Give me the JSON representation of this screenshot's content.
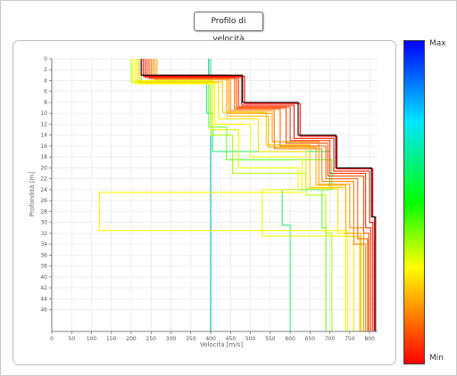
{
  "title": "Profilo di velocità",
  "colorbar": {
    "max_label": "Max",
    "min_label": "Min"
  },
  "chart_data": {
    "type": "line",
    "title": "Profilo di velocità",
    "xlabel": "Velocità [m/s]",
    "ylabel": "Profondità [m]",
    "xlim": [
      0,
      820
    ],
    "ylim": [
      0,
      50
    ],
    "y_inverted": true,
    "grid": true,
    "x_ticks": [
      0,
      50,
      100,
      150,
      200,
      250,
      300,
      350,
      400,
      450,
      500,
      550,
      600,
      650,
      700,
      750,
      800
    ],
    "y_ticks": [
      0,
      2,
      4,
      6,
      8,
      10,
      12,
      14,
      16,
      18,
      20,
      22,
      24,
      26,
      28,
      30,
      32,
      34,
      36,
      38,
      40,
      42,
      44,
      46
    ],
    "colormap": [
      "#0000ff",
      "#00e6ff",
      "#00ff00",
      "#ffff00",
      "#ff8000",
      "#ff0000"
    ],
    "series": [
      {
        "color": "#000000",
        "layers": [
          {
            "depth": 3,
            "v": 225
          },
          {
            "depth": 8,
            "v": 480
          },
          {
            "depth": 14,
            "v": 620
          },
          {
            "depth": 20,
            "v": 715
          },
          {
            "depth": 29,
            "v": 805
          },
          {
            "depth": 50,
            "v": 815
          }
        ]
      },
      {
        "color": "#ff0000",
        "layers": [
          {
            "depth": 3.2,
            "v": 230
          },
          {
            "depth": 8.2,
            "v": 485
          },
          {
            "depth": 14.2,
            "v": 625
          },
          {
            "depth": 20.2,
            "v": 718
          },
          {
            "depth": 29,
            "v": 808
          },
          {
            "depth": 50,
            "v": 812
          }
        ]
      },
      {
        "color": "#ff1a00",
        "layers": [
          {
            "depth": 3.4,
            "v": 235
          },
          {
            "depth": 8.5,
            "v": 478
          },
          {
            "depth": 14.6,
            "v": 610
          },
          {
            "depth": 20.6,
            "v": 710
          },
          {
            "depth": 30,
            "v": 800
          },
          {
            "depth": 50,
            "v": 808
          }
        ]
      },
      {
        "color": "#ff3300",
        "layers": [
          {
            "depth": 3.1,
            "v": 240
          },
          {
            "depth": 8.8,
            "v": 470
          },
          {
            "depth": 15,
            "v": 600
          },
          {
            "depth": 21,
            "v": 700
          },
          {
            "depth": 31,
            "v": 790
          },
          {
            "depth": 50,
            "v": 803
          }
        ]
      },
      {
        "color": "#ff4d00",
        "layers": [
          {
            "depth": 3.6,
            "v": 245
          },
          {
            "depth": 9,
            "v": 465
          },
          {
            "depth": 15.5,
            "v": 590
          },
          {
            "depth": 21.5,
            "v": 695
          },
          {
            "depth": 32,
            "v": 785
          },
          {
            "depth": 50,
            "v": 798
          }
        ]
      },
      {
        "color": "#ff6600",
        "layers": [
          {
            "depth": 3.3,
            "v": 250
          },
          {
            "depth": 9.2,
            "v": 460
          },
          {
            "depth": 16,
            "v": 575
          },
          {
            "depth": 22,
            "v": 690
          },
          {
            "depth": 33,
            "v": 770
          },
          {
            "depth": 50,
            "v": 795
          }
        ]
      },
      {
        "color": "#ff8000",
        "layers": [
          {
            "depth": 3.5,
            "v": 255
          },
          {
            "depth": 9.5,
            "v": 450
          },
          {
            "depth": 16.5,
            "v": 560
          },
          {
            "depth": 22.5,
            "v": 680
          },
          {
            "depth": 34,
            "v": 760
          },
          {
            "depth": 50,
            "v": 790
          }
        ]
      },
      {
        "color": "#ff9900",
        "layers": [
          {
            "depth": 3.8,
            "v": 260
          },
          {
            "depth": 10,
            "v": 445
          },
          {
            "depth": 15.2,
            "v": 555
          },
          {
            "depth": 23,
            "v": 672
          },
          {
            "depth": 31,
            "v": 750
          },
          {
            "depth": 50,
            "v": 785
          }
        ]
      },
      {
        "color": "#ffb300",
        "layers": [
          {
            "depth": 3,
            "v": 265
          },
          {
            "depth": 10.5,
            "v": 440
          },
          {
            "depth": 16.2,
            "v": 545
          },
          {
            "depth": 23.2,
            "v": 665
          },
          {
            "depth": 32,
            "v": 740
          },
          {
            "depth": 50,
            "v": 778
          }
        ]
      },
      {
        "color": "#ffcc00",
        "layers": [
          {
            "depth": 4.2,
            "v": 220
          },
          {
            "depth": 9.8,
            "v": 430
          },
          {
            "depth": 15.8,
            "v": 540
          },
          {
            "depth": 23.6,
            "v": 650
          },
          {
            "depth": 32.6,
            "v": 740
          },
          {
            "depth": 50,
            "v": 775
          }
        ]
      },
      {
        "color": "#ffe600",
        "layers": [
          {
            "depth": 4.4,
            "v": 215
          },
          {
            "depth": 11,
            "v": 420
          },
          {
            "depth": 17,
            "v": 520
          },
          {
            "depth": 23.8,
            "v": 640
          },
          {
            "depth": 32,
            "v": 720
          },
          {
            "depth": 50,
            "v": 760
          }
        ]
      },
      {
        "color": "#ffff00",
        "layers": [
          {
            "depth": 4.6,
            "v": 210
          },
          {
            "depth": 12,
            "v": 410
          },
          {
            "depth": 18,
            "v": 500
          },
          {
            "depth": 24.5,
            "v": 630
          },
          {
            "depth": 31.5,
            "v": 120
          },
          {
            "depth": 50,
            "v": 745
          }
        ]
      },
      {
        "color": "#e6ff00",
        "layers": [
          {
            "depth": 4,
            "v": 205
          },
          {
            "depth": 13,
            "v": 405
          },
          {
            "depth": 20,
            "v": 470
          },
          {
            "depth": 24,
            "v": 620
          },
          {
            "depth": 32.5,
            "v": 530
          },
          {
            "depth": 50,
            "v": 740
          }
        ]
      },
      {
        "color": "#b3ff00",
        "layers": [
          {
            "depth": 4.3,
            "v": 200
          },
          {
            "depth": 14,
            "v": 400
          },
          {
            "depth": 21,
            "v": 455
          },
          {
            "depth": 25,
            "v": 640
          },
          {
            "depth": 32,
            "v": 690
          },
          {
            "depth": 50,
            "v": 705
          }
        ]
      },
      {
        "color": "#66ff33",
        "layers": [
          {
            "depth": 4.5,
            "v": 225
          },
          {
            "depth": 12.5,
            "v": 395
          },
          {
            "depth": 18.5,
            "v": 440
          },
          {
            "depth": 24,
            "v": 705
          },
          {
            "depth": 31,
            "v": 680
          },
          {
            "depth": 50,
            "v": 690
          }
        ]
      },
      {
        "color": "#33e680",
        "layers": [
          {
            "depth": 4.2,
            "v": 400
          },
          {
            "depth": 10,
            "v": 390
          },
          {
            "depth": 17,
            "v": 405
          },
          {
            "depth": 24,
            "v": 700
          },
          {
            "depth": 30.5,
            "v": 580
          },
          {
            "depth": 50,
            "v": 600
          }
        ]
      },
      {
        "color": "#00b3b3",
        "layers": [
          {
            "depth": 4.1,
            "v": 395
          },
          {
            "depth": 50,
            "v": 400
          }
        ]
      }
    ]
  }
}
